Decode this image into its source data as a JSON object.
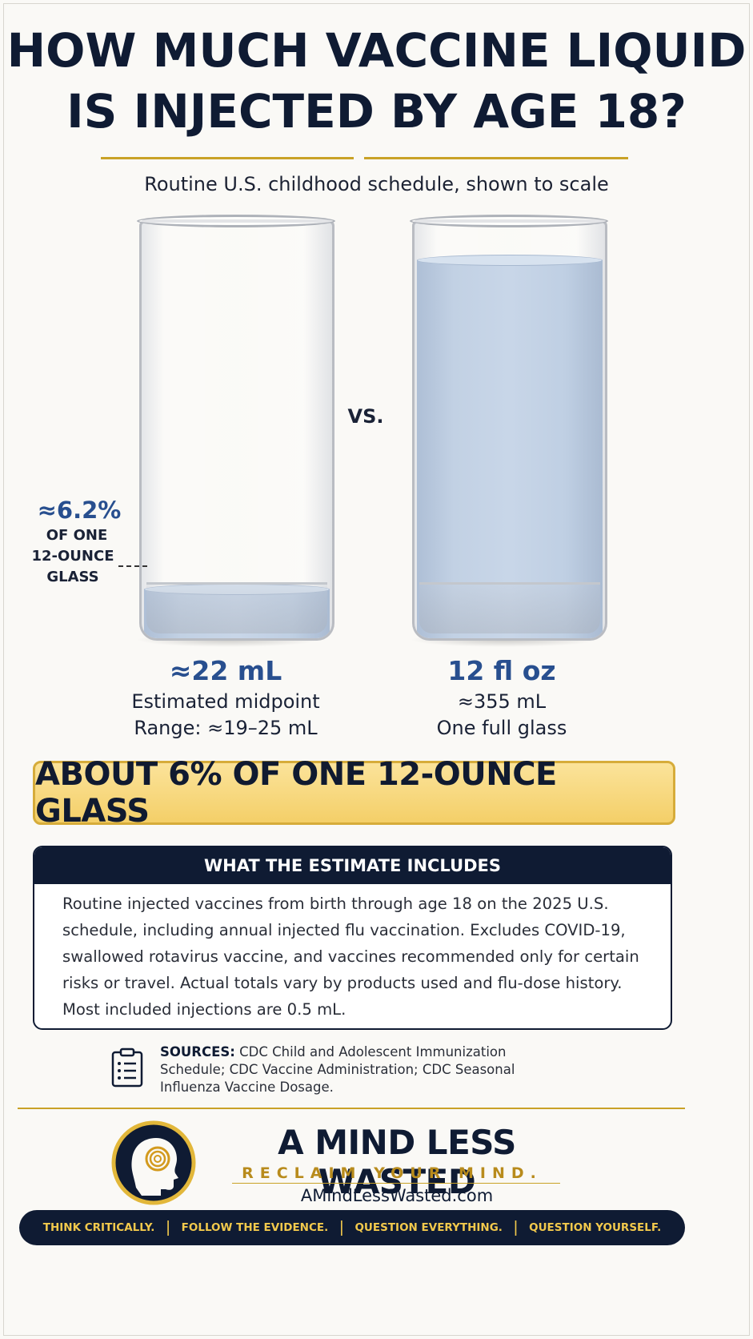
{
  "title": {
    "line1": "HOW MUCH VACCINE LIQUID",
    "line2": "IS INJECTED BY AGE 18?"
  },
  "subtitle": "Routine U.S. childhood schedule, shown to scale",
  "comparison": {
    "vs": "VS.",
    "left_glass": {
      "fill_fraction": 0.062,
      "callout_percent": "≈6.2%",
      "callout_lines": [
        "OF ONE",
        "12-OUNCE",
        "GLASS"
      ],
      "amount": "≈22 mL",
      "line1": "Estimated midpoint",
      "line2": "Range: ≈19–25 mL"
    },
    "right_glass": {
      "fill_fraction": 1.0,
      "amount": "12 fl oz",
      "line1": "≈355 mL",
      "line2": "One full glass"
    }
  },
  "banner": "ABOUT 6% OF ONE 12-OUNCE GLASS",
  "estimate": {
    "heading": "WHAT THE ESTIMATE INCLUDES",
    "body": "Routine injected vaccines from birth through age 18 on the 2025 U.S. schedule, including annual injected flu vaccination. Excludes COVID-19, swallowed rotavirus vaccine, and vaccines recommended only for certain risks or travel. Actual totals vary by products used and flu-dose history. Most included injections are 0.5 mL."
  },
  "sources": {
    "label": "SOURCES:",
    "text": " CDC Child and Adolescent Immunization Schedule; CDC Vaccine Administration; CDC Seasonal Influenza Vaccine Dosage.",
    "icon": "clipboard-list-icon"
  },
  "brand": {
    "name": "A MIND LESS WASTED",
    "tagline": "RECLAIM YOUR MIND.",
    "website": "AMindLessWasted.com",
    "logo_icon": "head-spiral-logo"
  },
  "footer": [
    "THINK CRITICALLY.",
    "FOLLOW THE EVIDENCE.",
    "QUESTION EVERYTHING.",
    "QUESTION YOURSELF."
  ],
  "colors": {
    "navy": "#0f1b33",
    "gold": "#c9a227",
    "accent_blue": "#284f8f",
    "banner_yellow": "#f4cf68"
  }
}
